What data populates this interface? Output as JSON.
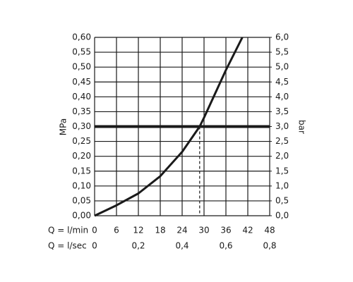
{
  "chart_data": {
    "type": "line",
    "x": [
      0,
      6,
      12,
      18,
      24,
      28.8,
      30,
      36,
      40.5
    ],
    "values": [
      0,
      0.035,
      0.075,
      0.133,
      0.215,
      0.3,
      0.33,
      0.49,
      0.6
    ],
    "color": "#1a1a1a",
    "xlim": [
      0,
      48
    ],
    "xticks": [
      0,
      6,
      12,
      18,
      24,
      30,
      36,
      42,
      48
    ],
    "xlabel": "Q = l/min",
    "x2lim": [
      0,
      0.8
    ],
    "x2ticks": [
      0,
      {
        "value": 0.2,
        "label": "0,2"
      },
      {
        "value": 0.4,
        "label": "0,4"
      },
      {
        "value": 0.6,
        "label": "0,6"
      },
      {
        "value": 0.8,
        "label": "0,8"
      }
    ],
    "x2label": "Q = l/sec",
    "ylim": [
      0,
      0.6
    ],
    "ylabel": "MPa",
    "yticks": [
      {
        "value": 0,
        "label": "0,00"
      },
      {
        "value": 0.05,
        "label": "0,05"
      },
      {
        "value": 0.1,
        "label": "0,10"
      },
      {
        "value": 0.15,
        "label": "0,15"
      },
      {
        "value": 0.2,
        "label": "0,20"
      },
      {
        "value": 0.25,
        "label": "0,25"
      },
      {
        "value": 0.3,
        "label": "0,30"
      },
      {
        "value": 0.35,
        "label": "0,35"
      },
      {
        "value": 0.4,
        "label": "0,40"
      },
      {
        "value": 0.45,
        "label": "0,45"
      },
      {
        "value": 0.5,
        "label": "0,50"
      },
      {
        "value": 0.55,
        "label": "0,55"
      },
      {
        "value": 0.6,
        "label": "0,60"
      }
    ],
    "y2lim": [
      0,
      6
    ],
    "y2label": "bar",
    "y2ticks": [
      {
        "value": 0,
        "label": "0,0"
      },
      {
        "value": 0.5,
        "label": "0,5"
      },
      {
        "value": 1,
        "label": "1,0"
      },
      {
        "value": 1.5,
        "label": "1,5"
      },
      {
        "value": 2,
        "label": "2,0"
      },
      {
        "value": 2.5,
        "label": "2,5"
      },
      {
        "value": 3,
        "label": "3,0"
      },
      {
        "value": 3.5,
        "label": "3,5"
      },
      {
        "value": 4,
        "label": "4,0"
      },
      {
        "value": 4.5,
        "label": "4,5"
      },
      {
        "value": 5,
        "label": "5,0"
      },
      {
        "value": 5.5,
        "label": "5,5"
      },
      {
        "value": 6,
        "label": "6,0"
      }
    ],
    "reference_y": 0.3,
    "reference_x": 28.8,
    "grid": true
  }
}
